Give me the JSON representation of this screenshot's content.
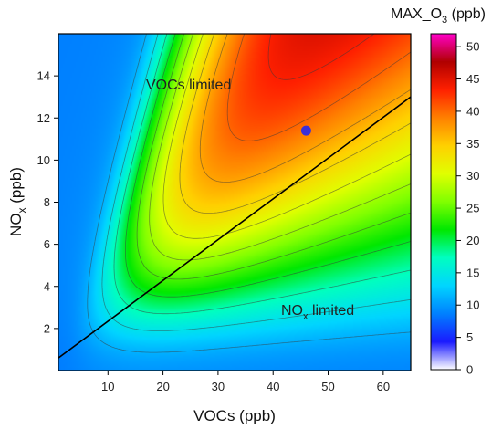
{
  "chart_data": {
    "type": "heatmap",
    "subtype": "filled-contour",
    "x": {
      "label_main": "VOCs",
      "label_unit": " (ppb)",
      "ticks": [
        10,
        20,
        30,
        40,
        50,
        60
      ],
      "range": [
        1,
        65
      ]
    },
    "y": {
      "label_main": "NO",
      "label_sub": "x",
      "label_unit": " (ppb)",
      "ticks": [
        2,
        4,
        6,
        8,
        10,
        12,
        14
      ],
      "range": [
        0,
        16
      ]
    },
    "z": {
      "colorbar_main": "MAX_O",
      "colorbar_sub": "3",
      "colorbar_unit": " (ppb)",
      "ticks": [
        0,
        5,
        10,
        15,
        20,
        25,
        30,
        35,
        40,
        45,
        50
      ],
      "range": [
        0,
        52
      ],
      "colormap": [
        "#ffffff",
        "#1a1aff",
        "#0080ff",
        "#00d5ff",
        "#00ffc0",
        "#00e800",
        "#80ff00",
        "#e0ff00",
        "#ffd000",
        "#ff8000",
        "#ff2000",
        "#b00000",
        "#ff00c8"
      ]
    },
    "annotations": [
      {
        "main": "VOCs limited",
        "sub": "",
        "tail": ""
      },
      {
        "main": "NO",
        "sub": "x",
        "tail": " limited"
      }
    ],
    "divider_line": {
      "from": [
        1,
        0.6
      ],
      "to": [
        65,
        13
      ]
    },
    "marker": {
      "x": 46,
      "y": 11.4,
      "color": "#3b2fd9"
    },
    "grid": false
  }
}
